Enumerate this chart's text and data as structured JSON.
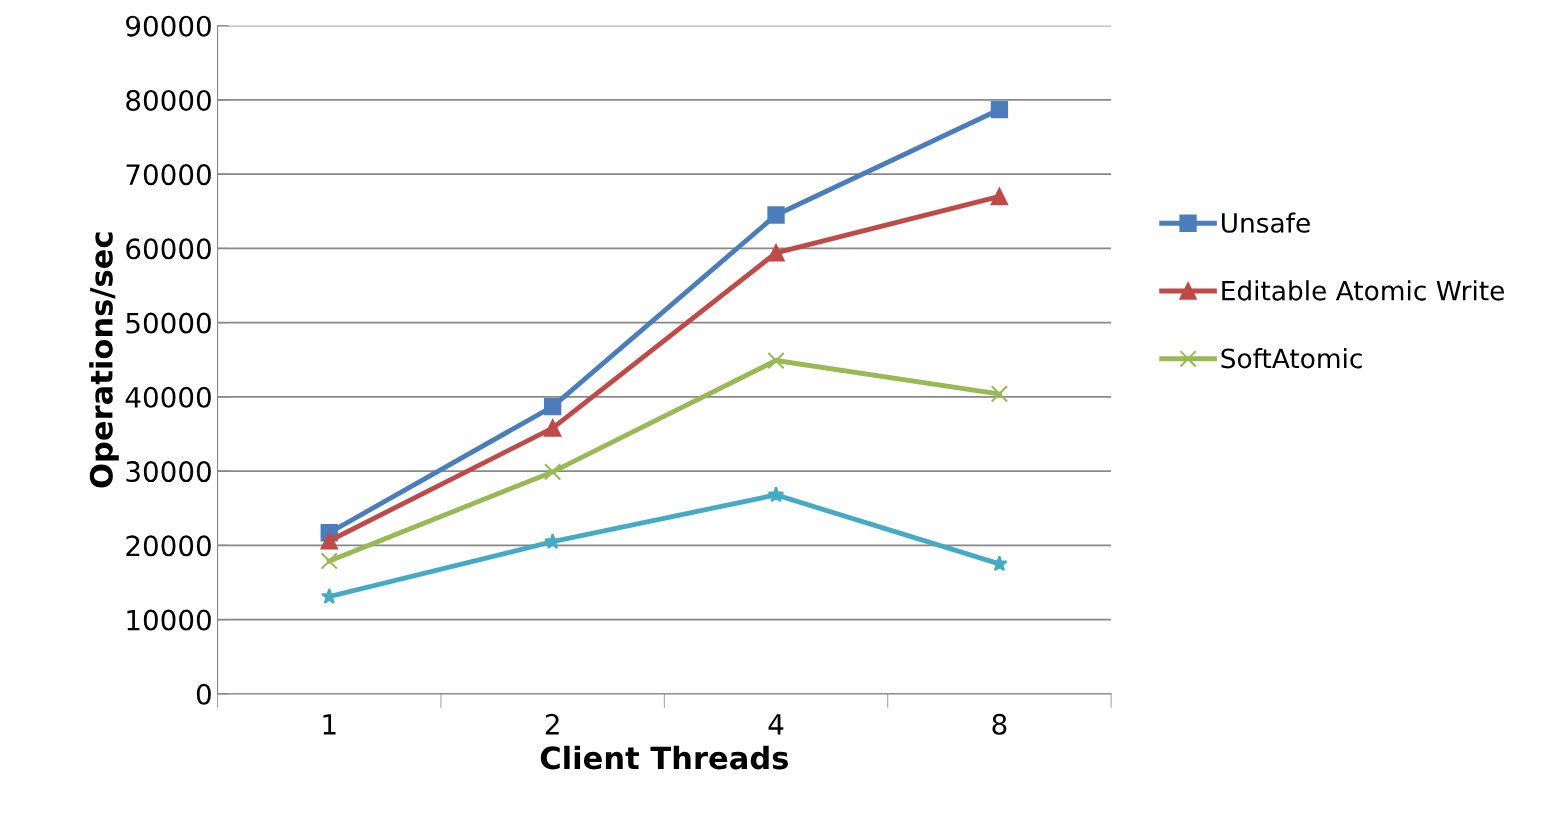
{
  "chart_data": {
    "type": "line",
    "xlabel": "Client Threads",
    "ylabel": "Operations/sec",
    "categories": [
      "1",
      "2",
      "4",
      "8"
    ],
    "ylim": [
      0,
      90000
    ],
    "yticks": [
      0,
      10000,
      20000,
      30000,
      40000,
      50000,
      60000,
      70000,
      80000,
      90000
    ],
    "grid": "y",
    "legend": "right",
    "series": [
      {
        "name": "Unsafe",
        "color": "#4a7ebb",
        "marker": "square",
        "values": [
          21700,
          38700,
          64500,
          78700
        ]
      },
      {
        "name": "Editable Atomic Write",
        "color": "#be4b48",
        "marker": "triangle",
        "values": [
          20600,
          35800,
          59400,
          67000
        ]
      },
      {
        "name": "SoftAtomic",
        "color": "#98b954",
        "marker": "cross",
        "values": [
          17900,
          29900,
          44900,
          40400
        ]
      },
      {
        "color": "#46aac5",
        "marker": "star",
        "values": [
          13100,
          20500,
          26800,
          17500
        ]
      }
    ]
  }
}
